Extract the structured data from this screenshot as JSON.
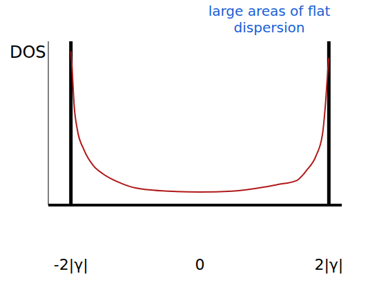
{
  "chart_data": {
    "type": "line",
    "y_label": "DOS",
    "annotation": "large areas of flat dispersion",
    "x": [
      -2,
      -1.98,
      -1.95,
      -1.9,
      -1.8,
      -1.65,
      -1.5,
      -1.2,
      -1,
      -0.5,
      0,
      0.5,
      1,
      1.2,
      1.5,
      1.65,
      1.8,
      1.9,
      1.95,
      1.98,
      2
    ],
    "values": [
      9.4,
      8.2,
      6.1,
      4.6,
      3.4,
      2.4,
      1.9,
      1.3,
      1.05,
      0.85,
      0.8,
      0.85,
      1.1,
      1.25,
      1.5,
      2.1,
      3.0,
      4.3,
      6.3,
      8.0,
      9.0
    ],
    "color": "#b01818",
    "xlim": [
      -2.35,
      2.2
    ],
    "ylim": [
      0,
      10
    ],
    "xticks": [
      {
        "value": -2,
        "label": "-2|γ|"
      },
      0,
      {
        "value": 2,
        "label": "2|γ|"
      }
    ],
    "vlines": [
      -2,
      2
    ],
    "tick_labels": "x",
    "grid": false
  }
}
